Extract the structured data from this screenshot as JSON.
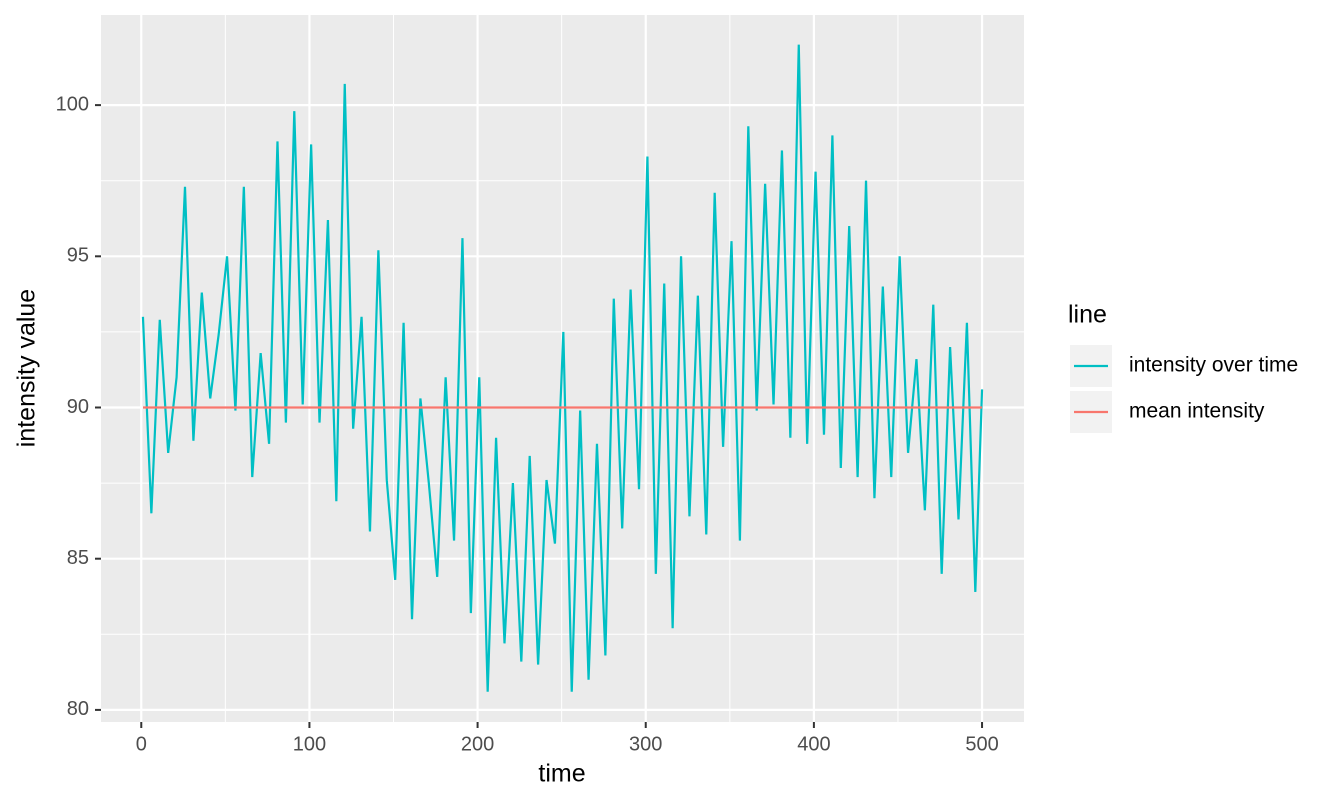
{
  "chart_data": {
    "type": "line",
    "x_label": "time",
    "y_label": "intensity value",
    "legend_title": "line",
    "legend_position": "right",
    "xlim": [
      -23.95,
      524.95
    ],
    "ylim": [
      79.6,
      102.98
    ],
    "xticks": [
      0,
      100,
      200,
      300,
      400,
      500
    ],
    "yticks": [
      80,
      85,
      90,
      95,
      100
    ],
    "x_minor_ticks": [
      50,
      150,
      250,
      350,
      450
    ],
    "y_minor_ticks": [
      82.5,
      87.5,
      92.5,
      97.5
    ],
    "grid": true,
    "series": [
      {
        "name": "intensity over time",
        "color": "#00BFC4",
        "x": [
          1,
          6,
          11,
          16,
          21,
          26,
          31,
          36,
          41,
          46,
          51,
          56,
          61,
          66,
          71,
          76,
          81,
          86,
          91,
          96,
          101,
          106,
          111,
          116,
          121,
          126,
          131,
          136,
          141,
          146,
          151,
          156,
          161,
          166,
          171,
          176,
          181,
          186,
          191,
          196,
          201,
          206,
          211,
          216,
          221,
          226,
          231,
          236,
          241,
          246,
          251,
          256,
          261,
          266,
          271,
          276,
          281,
          286,
          291,
          296,
          301,
          306,
          311,
          316,
          321,
          326,
          331,
          336,
          341,
          346,
          351,
          356,
          361,
          366,
          371,
          376,
          381,
          386,
          391,
          396,
          401,
          406,
          411,
          416,
          421,
          426,
          431,
          436,
          441,
          446,
          451,
          456,
          461,
          466,
          471,
          476,
          481,
          486,
          491,
          496,
          500
        ],
        "values": [
          93,
          86.5,
          92.9,
          88.5,
          91,
          97.3,
          88.9,
          93.8,
          90.3,
          92.4,
          95,
          89.9,
          97.3,
          87.7,
          91.8,
          88.8,
          98.8,
          89.5,
          99.8,
          90.1,
          98.7,
          89.5,
          96.2,
          86.9,
          100.7,
          89.3,
          93,
          85.9,
          95.2,
          87.6,
          84.3,
          92.8,
          83,
          90.3,
          87.5,
          84.4,
          91,
          85.6,
          95.6,
          83.2,
          91,
          80.6,
          89,
          82.2,
          87.5,
          81.6,
          88.4,
          81.5,
          87.6,
          85.5,
          92.5,
          80.6,
          89.9,
          81,
          88.8,
          81.8,
          93.6,
          86,
          93.9,
          87.3,
          98.3,
          84.5,
          94.1,
          82.7,
          95,
          86.4,
          93.7,
          85.8,
          97.1,
          88.7,
          95.5,
          85.6,
          99.3,
          89.9,
          97.4,
          90.1,
          98.5,
          89,
          102,
          88.8,
          97.8,
          89.1,
          99,
          88,
          96,
          87.7,
          97.5,
          87,
          94,
          87.7,
          95,
          88.5,
          91.6,
          86.6,
          93.4,
          84.5,
          92,
          86.3,
          92.8,
          83.9,
          90.6
        ]
      },
      {
        "name": "mean intensity",
        "color": "#F8766D",
        "x": [
          1,
          500
        ],
        "values": [
          90,
          90
        ]
      }
    ]
  }
}
